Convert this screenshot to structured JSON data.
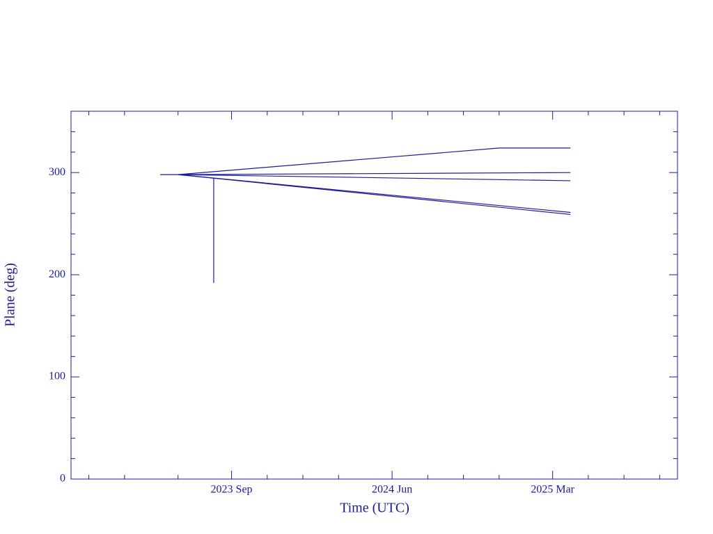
{
  "chart_data": {
    "type": "line",
    "x_label": "Time (UTC)",
    "y_label": "Plane (deg)",
    "color": "#1a1a9c",
    "xlim": [
      "2022 Dec",
      "2025 Oct"
    ],
    "xticks": [
      "2023 Sep",
      "2024 Jun",
      "2025 Mar"
    ],
    "xminorticks": [
      "2023 Jan",
      "2023 Mar",
      "2023 Jun",
      "2023 Nov",
      "2024 Jan",
      "2024 Mar",
      "2024 Aug",
      "2024 Oct",
      "2024 Dec",
      "2025 May",
      "2025 Jul",
      "2025 Sep"
    ],
    "ylim": [
      0,
      360
    ],
    "yticks": [
      0,
      100,
      200,
      300
    ],
    "yminorticks": [
      20,
      40,
      60,
      80,
      120,
      140,
      160,
      180,
      220,
      240,
      260,
      280,
      320,
      340
    ],
    "series": [
      {
        "x": [
          "2023 May",
          "2023 Jun",
          "2024 Dec",
          "2025 Apr"
        ],
        "values": [
          298,
          298,
          324,
          324
        ]
      },
      {
        "x": [
          "2023 Jun",
          "2025 Apr"
        ],
        "values": [
          298,
          300
        ]
      },
      {
        "x": [
          "2023 Jun",
          "2025 Apr"
        ],
        "values": [
          298,
          292
        ]
      },
      {
        "x": [
          "2023 Jun",
          "2025 Apr"
        ],
        "values": [
          298,
          261
        ]
      },
      {
        "x": [
          "2023 Jun",
          "2025 Apr"
        ],
        "values": [
          298,
          259
        ]
      },
      {
        "x": [
          "2023 Aug",
          "2023 Aug"
        ],
        "values": [
          295,
          192
        ]
      }
    ]
  }
}
